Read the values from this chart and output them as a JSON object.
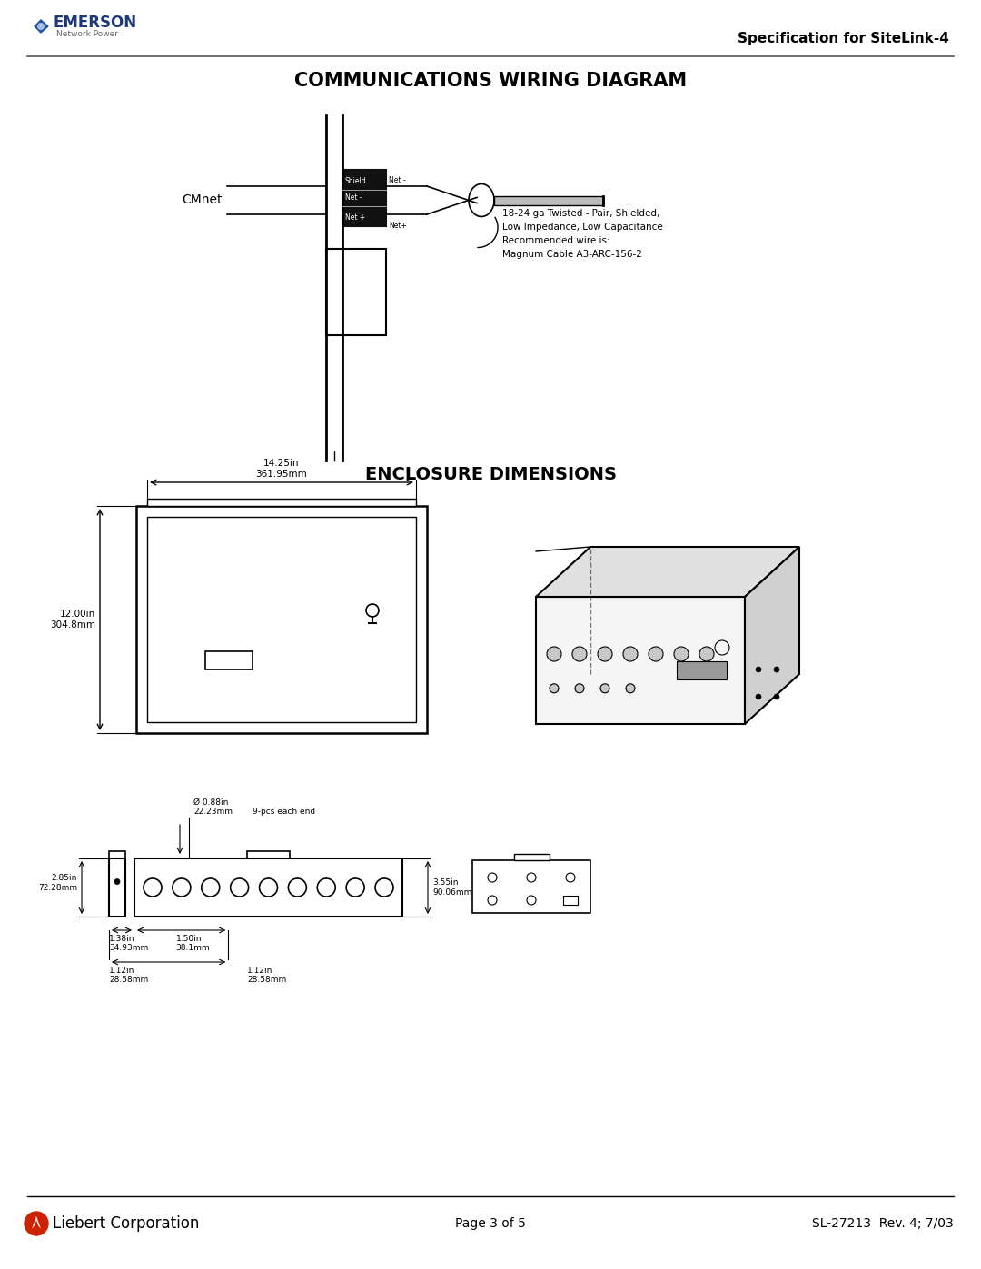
{
  "title": "COMMUNICATIONS WIRING DIAGRAM",
  "subtitle": "Specification for SiteLink-4",
  "section2_title": "ENCLOSURE DIMENSIONS",
  "cmnet_label": "CMnet",
  "connector_labels": [
    "Shield",
    "Net -",
    "Net +"
  ],
  "net_labels": [
    "Net -",
    "Net+"
  ],
  "wire_note": "18-24 ga Twisted - Pair, Shielded,\nLow Impedance, Low Capacitance\nRecommended wire is:\nMagnum Cable A3-ARC-156-2",
  "dim1_label": "14.25in\n361.95mm",
  "dim2_label": "12.00in\n304.8mm",
  "bottom_dims": {
    "d1": "2.85in\n72.28mm",
    "d2": "0.88in\n22.23mm",
    "d3": "9-pcs each end",
    "d4": "3.55in\n90.06mm",
    "d5": "1.38in\n34.93mm",
    "d6": "1.50in\n38.1mm",
    "d7": "1.12in\n28.58mm",
    "d8": "1.12in\n28.58mm"
  },
  "footer_left": "Liebert Corporation",
  "footer_center": "Page 3 of 5",
  "footer_right": "SL-27213  Rev. 4; 7/03",
  "bg_color": "#ffffff",
  "line_color": "#000000",
  "text_color": "#000000",
  "emerson_blue": "#1e3a7a",
  "title_fontsize": 16,
  "subtitle_fontsize": 12,
  "body_fontsize": 9
}
